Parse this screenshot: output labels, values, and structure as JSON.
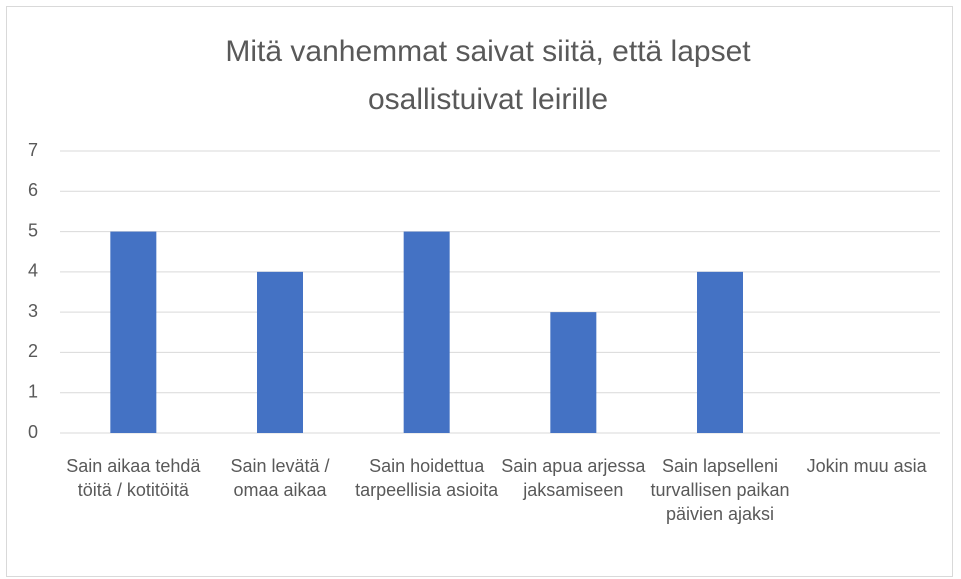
{
  "chart_data": {
    "type": "bar",
    "title": "Mitä vanhemmat saivat siitä, että lapset osallistuivat leirille",
    "categories": [
      "Sain aikaa tehdä töitä / kotitöitä",
      "Sain levätä / omaa aikaa",
      "Sain hoidettua tarpeellisia asioita",
      "Sain apua arjessa jaksamiseen",
      "Sain lapselleni turvallisen paikan päivien ajaksi",
      "Jokin muu asia"
    ],
    "values": [
      5,
      4,
      5,
      3,
      4,
      0
    ],
    "color": "#4472c4",
    "ylim": [
      0,
      7
    ],
    "yticks": [
      0,
      1,
      2,
      3,
      4,
      5,
      6,
      7
    ],
    "grid": true
  }
}
